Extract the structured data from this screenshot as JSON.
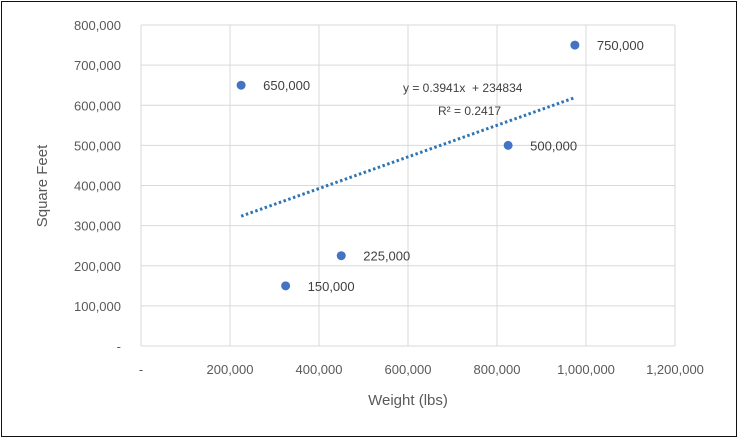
{
  "chart_data": {
    "type": "scatter",
    "title": "",
    "xlabel": "Weight (lbs)",
    "ylabel": "Square Feet",
    "xlim": [
      0,
      1200000
    ],
    "ylim": [
      0,
      800000
    ],
    "x_ticks": [
      "-",
      "200,000",
      "400,000",
      "600,000",
      "800,000",
      "1,000,000",
      "1,200,000"
    ],
    "y_ticks": [
      "-",
      "100,000",
      "200,000",
      "300,000",
      "400,000",
      "500,000",
      "600,000",
      "700,000",
      "800,000"
    ],
    "grid": true,
    "marker_color": "#4472C4",
    "trendline_color": "#2E75B6",
    "points": [
      {
        "x": 225000,
        "y": 650000,
        "label": "650,000"
      },
      {
        "x": 325000,
        "y": 150000,
        "label": "150,000"
      },
      {
        "x": 450000,
        "y": 225000,
        "label": "225,000"
      },
      {
        "x": 825000,
        "y": 500000,
        "label": "500,000"
      },
      {
        "x": 975000,
        "y": 750000,
        "label": "750,000"
      }
    ],
    "trendline": {
      "type": "linear",
      "slope": 0.3941,
      "intercept": 234834,
      "x_range": [
        225000,
        975000
      ],
      "equation": "y = 0.3941x  + 234834",
      "r_squared": "R² = 0.2417"
    }
  }
}
